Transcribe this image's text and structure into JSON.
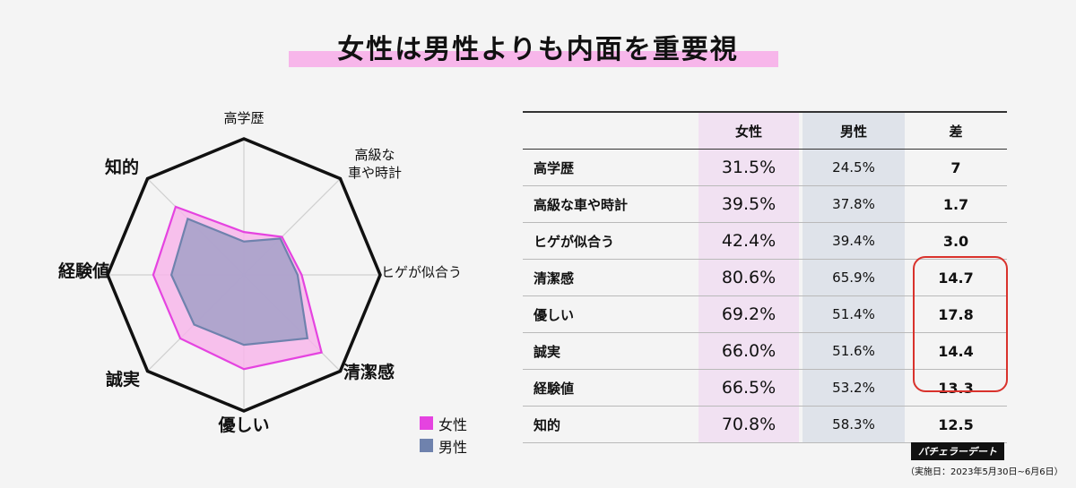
{
  "title": "女性は男性よりも内面を重要視",
  "legend": {
    "female": "女性",
    "male": "男性"
  },
  "colors": {
    "female_fill": "#f7b6ea",
    "female_line": "#e543e0",
    "male_fill": "#a3a0c8",
    "male_line": "#6f82ad",
    "title_highlight": "#f7b6ea",
    "box": "#d9322c"
  },
  "table": {
    "headers": {
      "item": "",
      "female": "女性",
      "male": "男性",
      "diff": "差"
    },
    "rows": [
      {
        "label": "高学歴",
        "female": "31.5%",
        "male": "24.5%",
        "diff": "7"
      },
      {
        "label": "高級な車や時計",
        "female": "39.5%",
        "male": "37.8%",
        "diff": "1.7"
      },
      {
        "label": "ヒゲが似合う",
        "female": "42.4%",
        "male": "39.4%",
        "diff": "3.0"
      },
      {
        "label": "清潔感",
        "female": "80.6%",
        "male": "65.9%",
        "diff": "14.7"
      },
      {
        "label": "優しい",
        "female": "69.2%",
        "male": "51.4%",
        "diff": "17.8"
      },
      {
        "label": "誠実",
        "female": "66.0%",
        "male": "51.6%",
        "diff": "14.4"
      },
      {
        "label": "経験値",
        "female": "66.5%",
        "male": "53.2%",
        "diff": "13.3"
      },
      {
        "label": "知的",
        "female": "70.8%",
        "male": "58.3%",
        "diff": "12.5"
      }
    ]
  },
  "brand": "バチェラーデート",
  "survey_note": "（実施日：2023年5月30日~6月6日）",
  "chart_data": {
    "type": "radar",
    "axes": [
      "高学歴",
      "高級な\n車や時計",
      "ヒゲが似合う",
      "清潔感",
      "優しい",
      "誠実",
      "経験値",
      "知的"
    ],
    "range": [
      0,
      100
    ],
    "series": [
      {
        "name": "女性",
        "values": [
          31.5,
          39.5,
          42.4,
          80.6,
          69.2,
          66.0,
          66.5,
          70.8
        ]
      },
      {
        "name": "男性",
        "values": [
          24.5,
          37.8,
          39.4,
          65.9,
          51.4,
          51.6,
          53.2,
          58.3
        ]
      }
    ]
  }
}
